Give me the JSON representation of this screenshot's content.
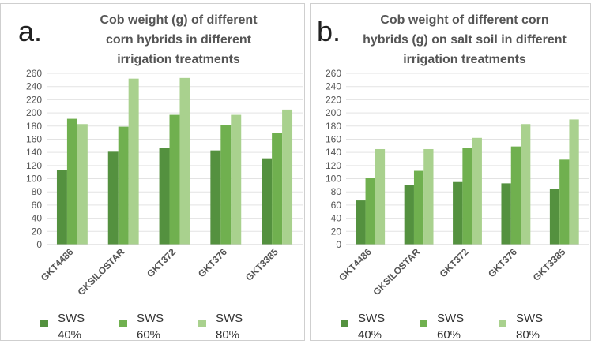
{
  "chart_data": [
    {
      "type": "bar",
      "panel_label": "a.",
      "title": "Cob weight (g) of different corn hybrids in different irrigation treatments",
      "categories": [
        "GKT4486",
        "GKSILOSTAR",
        "GKT372",
        "GKT376",
        "GKT3385"
      ],
      "series": [
        {
          "name": "SWS 40%",
          "color": "#54913f",
          "values": [
            113,
            141,
            147,
            143,
            131
          ]
        },
        {
          "name": "SWS 60%",
          "color": "#70b04f",
          "values": [
            191,
            179,
            197,
            182,
            170
          ]
        },
        {
          "name": "SWS 80%",
          "color": "#a9d18e",
          "values": [
            183,
            252,
            253,
            197,
            205
          ]
        }
      ],
      "ylim": [
        0,
        260
      ],
      "yticks": [
        0,
        20,
        40,
        60,
        80,
        100,
        120,
        140,
        160,
        180,
        200,
        220,
        240,
        260
      ]
    },
    {
      "type": "bar",
      "panel_label": "b.",
      "title": "Cob weight of different corn hybrids (g) on salt soil in different irrigation treatments",
      "categories": [
        "GKT4486",
        "GKSILOSTAR",
        "GKT372",
        "GKT376",
        "GKT3385"
      ],
      "series": [
        {
          "name": "SWS 40%",
          "color": "#54913f",
          "values": [
            67,
            91,
            95,
            93,
            84
          ]
        },
        {
          "name": "SWS 60%",
          "color": "#70b04f",
          "values": [
            101,
            112,
            147,
            149,
            129
          ]
        },
        {
          "name": "SWS 80%",
          "color": "#a9d18e",
          "values": [
            145,
            145,
            162,
            183,
            190
          ]
        }
      ],
      "ylim": [
        0,
        260
      ],
      "yticks": [
        0,
        20,
        40,
        60,
        80,
        100,
        120,
        140,
        160,
        180,
        200,
        220,
        240,
        260
      ]
    }
  ]
}
